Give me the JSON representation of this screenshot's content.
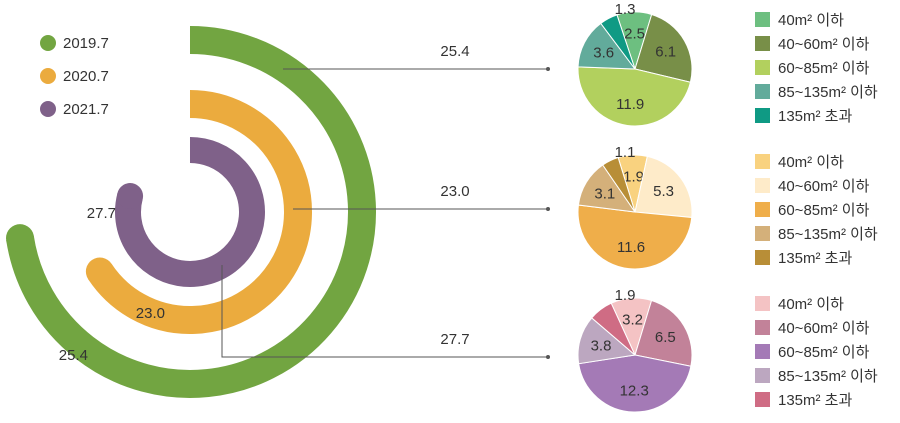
{
  "chart_data": [
    {
      "type": "radial-bar",
      "series": [
        {
          "name": "2019.7",
          "value": 25.4,
          "color": "#72a541"
        },
        {
          "name": "2020.7",
          "value": 23.0,
          "color": "#ebab3e"
        },
        {
          "name": "2021.7",
          "value": 27.7,
          "color": "#7f6189"
        }
      ],
      "leader_labels": [
        "25.4",
        "23.0",
        "27.7"
      ]
    },
    {
      "type": "pie",
      "year": "2019.7",
      "categories": [
        "40m² 이하",
        "40~60m² 이하",
        "60~85m² 이하",
        "85~135m² 이하",
        "135m² 초과"
      ],
      "values": [
        2.5,
        6.1,
        11.9,
        3.6,
        1.3
      ],
      "colors": [
        "#6dbf80",
        "#788f48",
        "#b2d05e",
        "#62ab9b",
        "#0f9a84"
      ]
    },
    {
      "type": "pie",
      "year": "2020.7",
      "categories": [
        "40m² 이하",
        "40~60m² 이하",
        "60~85m² 이하",
        "85~135m² 이하",
        "135m² 초과"
      ],
      "values": [
        1.9,
        5.3,
        11.6,
        3.1,
        1.1
      ],
      "colors": [
        "#f9d27f",
        "#feebc9",
        "#efae4a",
        "#d4b07a",
        "#b88e37"
      ]
    },
    {
      "type": "pie",
      "year": "2021.7",
      "categories": [
        "40m² 이하",
        "40~60m² 이하",
        "60~85m² 이하",
        "85~135m² 이하",
        "135m² 초과"
      ],
      "values": [
        3.2,
        6.5,
        12.3,
        3.8,
        1.9
      ],
      "colors": [
        "#f4c3c4",
        "#c28299",
        "#a47ab6",
        "#bca7c0",
        "#cf6c84"
      ]
    }
  ]
}
